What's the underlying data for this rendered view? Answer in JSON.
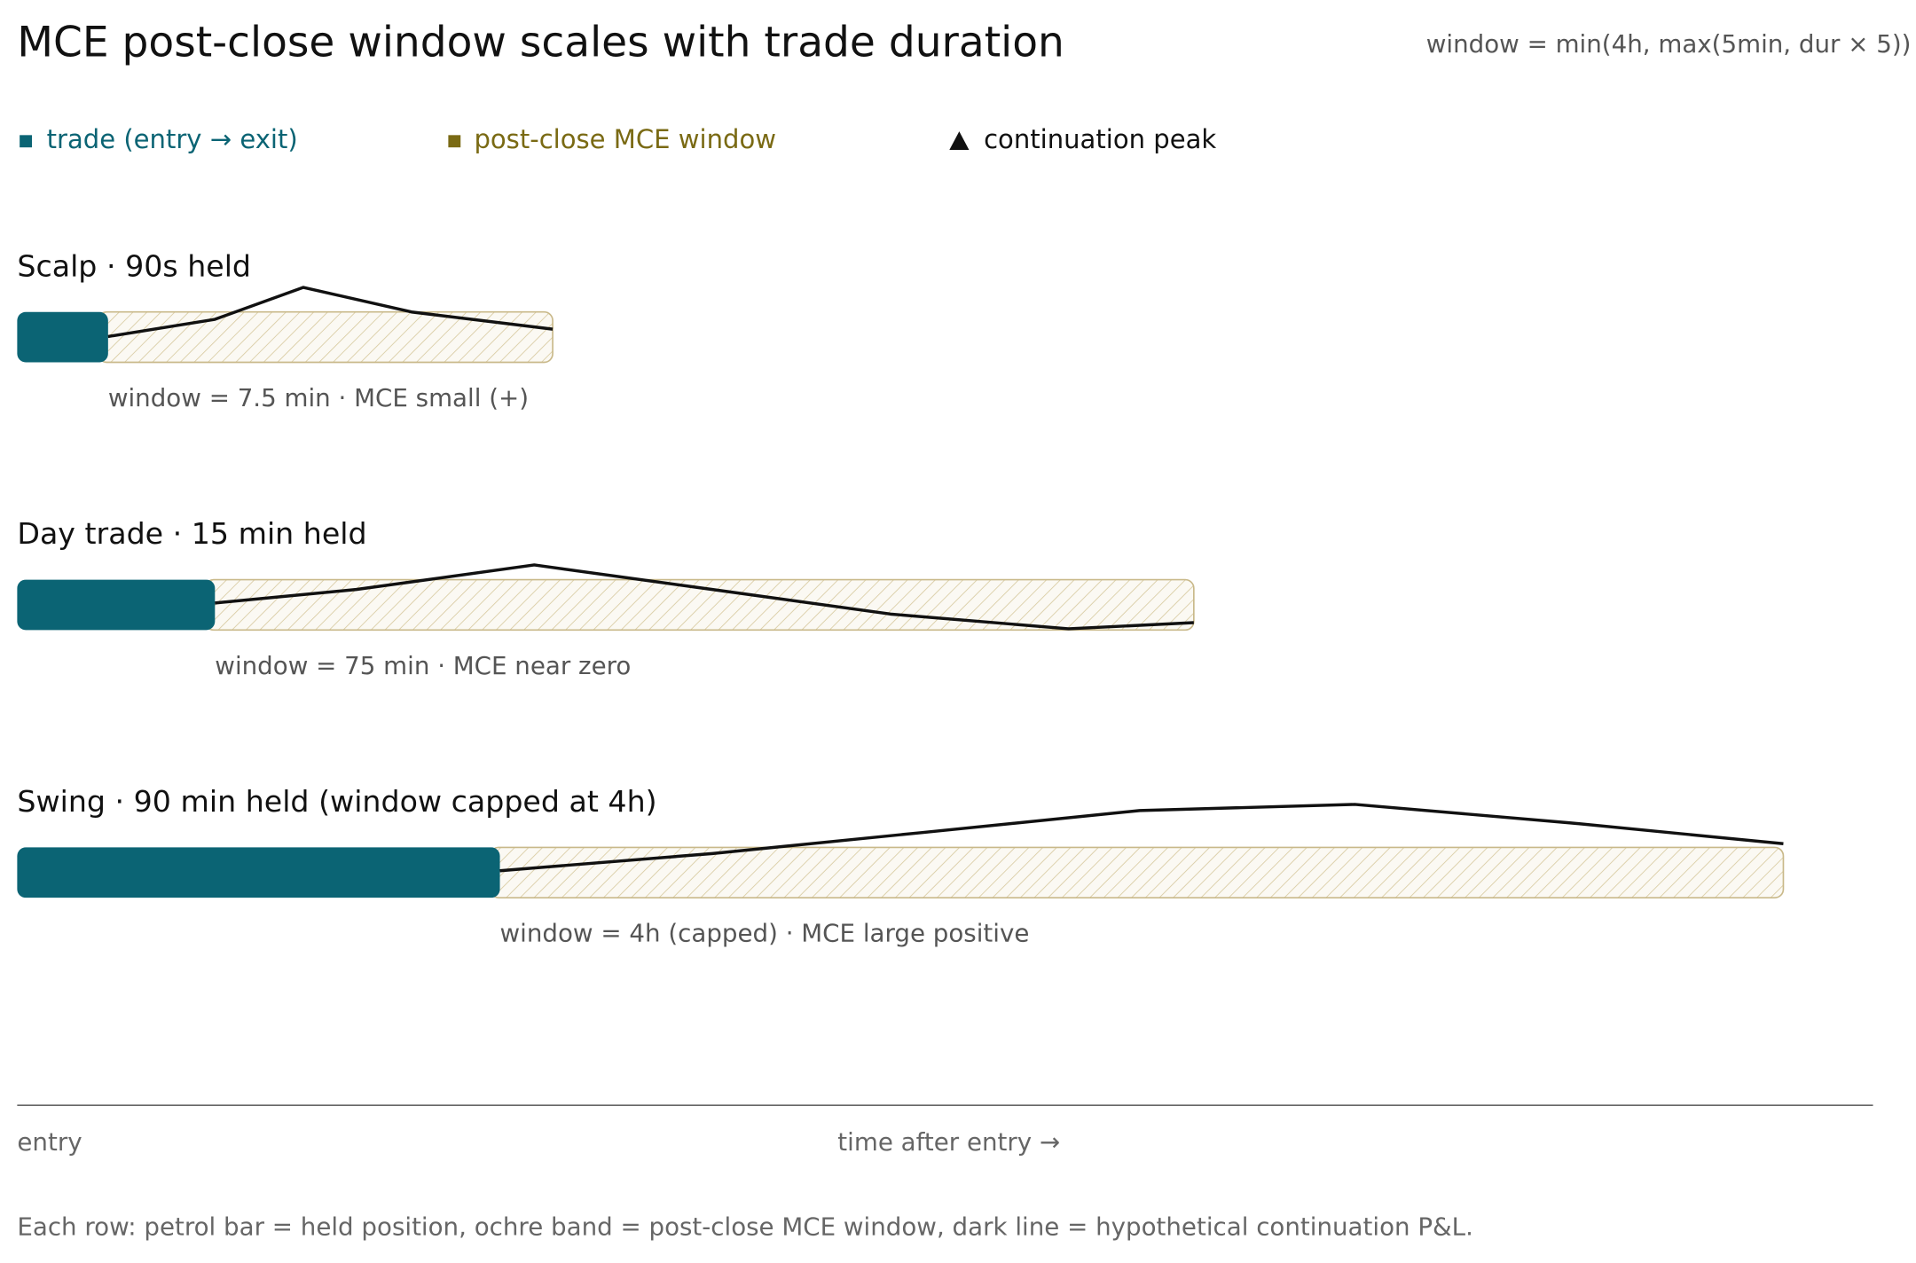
{
  "header": {
    "title": "MCE post-close window scales with trade duration",
    "formula": "window = min(4h, max(5min, dur × 5))"
  },
  "legend": [
    "trade (entry → exit)",
    "post-close MCE window",
    "continuation peak"
  ],
  "rows": [
    {
      "label": "Scalp · 90s held",
      "note": "window = 7.5 min · MCE small (+)"
    },
    {
      "label": "Day trade · 15 min held",
      "note": "window = 75 min · MCE near zero"
    },
    {
      "label": "Swing · 90 min held (window capped at 4h)",
      "note": "window = 4h (capped) · MCE large positive"
    }
  ],
  "axis": {
    "start": "entry",
    "label": "time after entry →"
  },
  "footer": "Each row: petrol bar = held position, ochre band = post-close MCE window, dark line = hypothetical continuation P&L."
}
